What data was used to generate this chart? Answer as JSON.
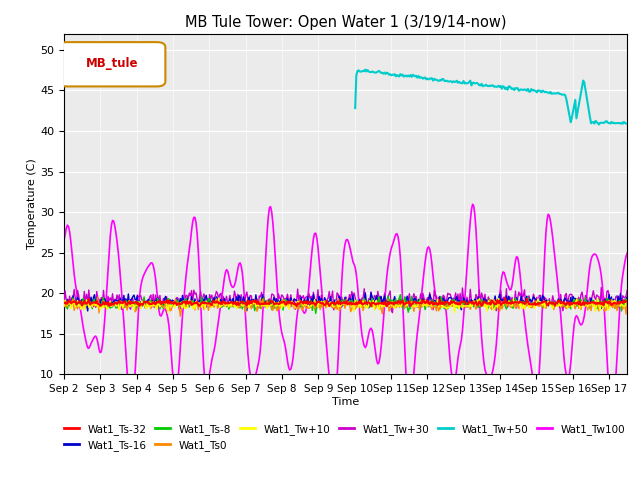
{
  "title": "MB Tule Tower: Open Water 1 (3/19/14-now)",
  "xlabel": "Time",
  "ylabel": "Temperature (C)",
  "ylim": [
    10,
    52
  ],
  "yticks": [
    10,
    15,
    20,
    25,
    30,
    35,
    40,
    45,
    50
  ],
  "xlim_days": [
    0,
    15.5
  ],
  "x_tick_labels": [
    "Sep 2",
    "Sep 3",
    "Sep 4",
    "Sep 5",
    "Sep 6",
    "Sep 7",
    "Sep 8",
    "Sep 9",
    "Sep 10",
    "Sep 11",
    "Sep 12",
    "Sep 13",
    "Sep 14",
    "Sep 15",
    "Sep 16",
    "Sep 17"
  ],
  "legend_label": "MB_tule",
  "bg_color": "#e8e8e8",
  "series": {
    "Wat1_Ts-32": "#ff0000",
    "Wat1_Ts-16": "#0000cc",
    "Wat1_Ts-8": "#00cc00",
    "Wat1_Ts0": "#ff8800",
    "Wat1_Tw+10": "#ffff00",
    "Wat1_Tw+30": "#cc00cc",
    "Wat1_Tw+50": "#00cccc",
    "Wat1_Tw100": "#ff00ff"
  },
  "figsize": [
    6.4,
    4.8
  ],
  "dpi": 100
}
